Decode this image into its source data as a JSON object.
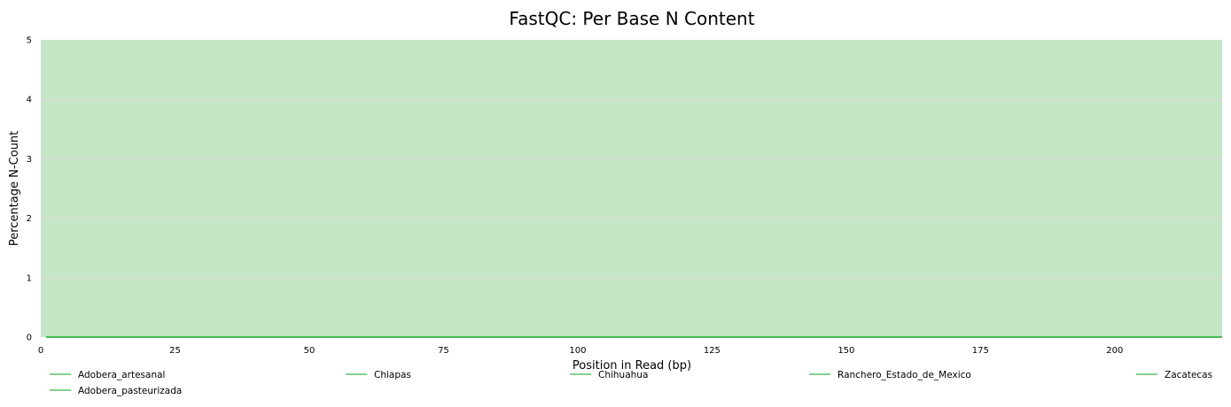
{
  "chart_data": {
    "type": "line",
    "title": "FastQC: Per Base N Content",
    "xlabel": "Position in Read (bp)",
    "ylabel": "Percentage N-Count",
    "xlim": [
      0,
      220
    ],
    "ylim": [
      0,
      5
    ],
    "xticks": [
      0,
      25,
      50,
      75,
      100,
      125,
      150,
      175,
      200
    ],
    "yticks": [
      0,
      1,
      2,
      3,
      4,
      5
    ],
    "grid": true,
    "legend_position": "bottom",
    "background_band_color": "#c4e6c4",
    "series_color": "#3cb44b",
    "series": [
      {
        "name": "Adobera_artesanal",
        "x": [
          1,
          220
        ],
        "y": [
          0,
          0
        ]
      },
      {
        "name": "Adobera_pasteurizada",
        "x": [
          1,
          220
        ],
        "y": [
          0,
          0
        ]
      },
      {
        "name": "Chiapas",
        "x": [
          1,
          220
        ],
        "y": [
          0,
          0
        ]
      },
      {
        "name": "Chihuahua",
        "x": [
          1,
          220
        ],
        "y": [
          0,
          0
        ]
      },
      {
        "name": "Ranchero_Estado_de_Mexico",
        "x": [
          1,
          220
        ],
        "y": [
          0,
          0
        ]
      },
      {
        "name": "Zacatecas",
        "x": [
          1,
          220
        ],
        "y": [
          0,
          0
        ]
      }
    ]
  }
}
